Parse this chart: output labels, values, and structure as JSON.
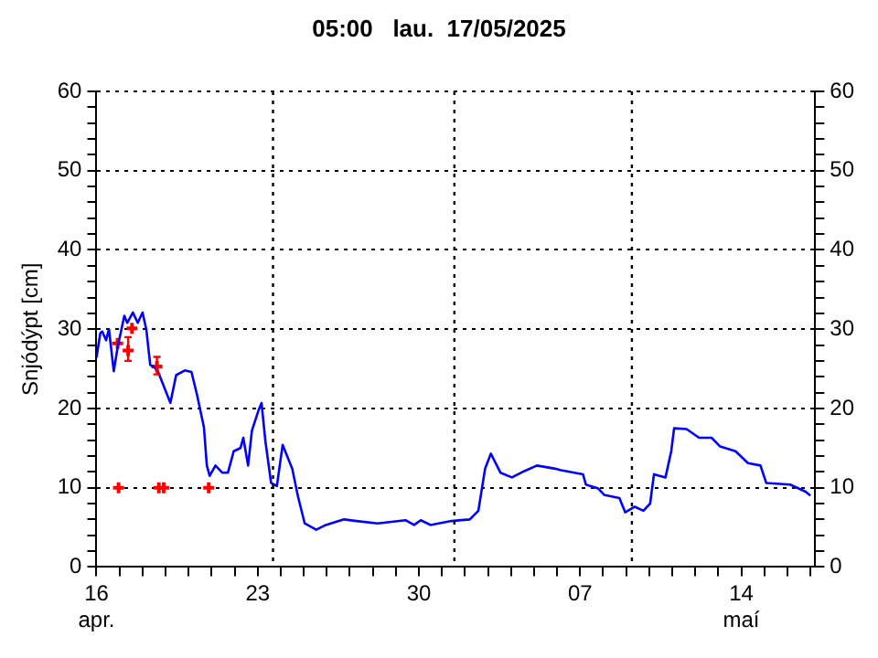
{
  "chart_data": {
    "type": "line",
    "title": "05:00   lau.  17/05/2025",
    "ylabel": "Snjódýpt [cm]",
    "xlim": [
      "2025-04-16T00:00",
      "2025-05-17T05:00"
    ],
    "xticks": [
      {
        "value": "2025-04-16",
        "label": "16\napr."
      },
      {
        "value": "2025-04-17",
        "label": null
      },
      {
        "value": "2025-04-18",
        "label": null
      },
      {
        "value": "2025-04-19",
        "label": null
      },
      {
        "value": "2025-04-20",
        "label": null
      },
      {
        "value": "2025-04-21",
        "label": null
      },
      {
        "value": "2025-04-22",
        "label": null
      },
      {
        "value": "2025-04-23",
        "label": "23"
      },
      {
        "value": "2025-04-24",
        "label": null
      },
      {
        "value": "2025-04-25",
        "label": null
      },
      {
        "value": "2025-04-26",
        "label": null
      },
      {
        "value": "2025-04-27",
        "label": null
      },
      {
        "value": "2025-04-28",
        "label": null
      },
      {
        "value": "2025-04-29",
        "label": null
      },
      {
        "value": "2025-04-30",
        "label": "30"
      },
      {
        "value": "2025-05-01",
        "label": null
      },
      {
        "value": "2025-05-02",
        "label": null
      },
      {
        "value": "2025-05-03",
        "label": null
      },
      {
        "value": "2025-05-04",
        "label": null
      },
      {
        "value": "2025-05-05",
        "label": null
      },
      {
        "value": "2025-05-06",
        "label": null
      },
      {
        "value": "2025-05-07",
        "label": "07"
      },
      {
        "value": "2025-05-08",
        "label": null
      },
      {
        "value": "2025-05-09",
        "label": null
      },
      {
        "value": "2025-05-10",
        "label": null
      },
      {
        "value": "2025-05-11",
        "label": null
      },
      {
        "value": "2025-05-12",
        "label": null
      },
      {
        "value": "2025-05-13",
        "label": null
      },
      {
        "value": "2025-05-14",
        "label": "14\nmaí"
      },
      {
        "value": "2025-05-15",
        "label": null
      },
      {
        "value": "2025-05-16",
        "label": null
      },
      {
        "value": "2025-05-17",
        "label": null
      }
    ],
    "ylim": [
      0,
      60
    ],
    "yticks": [
      0,
      {
        "value": 2,
        "label": null
      },
      {
        "value": 4,
        "label": null
      },
      {
        "value": 6,
        "label": null
      },
      {
        "value": 8,
        "label": null
      },
      10,
      {
        "value": 12,
        "label": null
      },
      {
        "value": 14,
        "label": null
      },
      {
        "value": 16,
        "label": null
      },
      {
        "value": 18,
        "label": null
      },
      20,
      {
        "value": 22,
        "label": null
      },
      {
        "value": 24,
        "label": null
      },
      {
        "value": 26,
        "label": null
      },
      {
        "value": 28,
        "label": null
      },
      30,
      {
        "value": 32,
        "label": null
      },
      {
        "value": 34,
        "label": null
      },
      {
        "value": 36,
        "label": null
      },
      {
        "value": 38,
        "label": null
      },
      40,
      {
        "value": 42,
        "label": null
      },
      {
        "value": 44,
        "label": null
      },
      {
        "value": 46,
        "label": null
      },
      {
        "value": 48,
        "label": null
      },
      50,
      {
        "value": 52,
        "label": null
      },
      {
        "value": 54,
        "label": null
      },
      {
        "value": 56,
        "label": null
      },
      {
        "value": 58,
        "label": null
      },
      60
    ],
    "y2lim": [
      0,
      60
    ],
    "y2ticks": [
      0,
      {
        "value": 2,
        "label": null
      },
      {
        "value": 4,
        "label": null
      },
      {
        "value": 6,
        "label": null
      },
      {
        "value": 8,
        "label": null
      },
      10,
      {
        "value": 12,
        "label": null
      },
      {
        "value": 14,
        "label": null
      },
      {
        "value": 16,
        "label": null
      },
      {
        "value": 18,
        "label": null
      },
      20,
      {
        "value": 22,
        "label": null
      },
      {
        "value": 24,
        "label": null
      },
      {
        "value": 26,
        "label": null
      },
      {
        "value": 28,
        "label": null
      },
      30,
      {
        "value": 32,
        "label": null
      },
      {
        "value": 34,
        "label": null
      },
      {
        "value": 36,
        "label": null
      },
      {
        "value": 38,
        "label": null
      },
      40,
      {
        "value": 42,
        "label": null
      },
      {
        "value": 44,
        "label": null
      },
      {
        "value": 46,
        "label": null
      },
      {
        "value": 48,
        "label": null
      },
      50,
      {
        "value": 52,
        "label": null
      },
      {
        "value": 54,
        "label": null
      },
      {
        "value": 56,
        "label": null
      },
      {
        "value": 58,
        "label": null
      },
      60
    ],
    "grid": "y",
    "legend": false,
    "line_style": "solid",
    "ref_lines": [
      {
        "axis": "x",
        "value": "2025-04-23T16:00",
        "line_style": "dotted",
        "color": "#000000"
      },
      {
        "axis": "x",
        "value": "2025-05-01T13:00",
        "line_style": "dotted",
        "color": "#000000"
      },
      {
        "axis": "x",
        "value": "2025-05-09T06:00",
        "line_style": "dotted",
        "color": "#000000"
      }
    ],
    "series": [
      {
        "color": "#0000ff",
        "x": [
          "2025-04-16T00:00",
          "2025-04-16T04:00",
          "2025-04-16T06:00",
          "2025-04-16T10:00",
          "2025-04-16T13:00",
          "2025-04-16T18:00",
          "2025-04-16T22:00",
          "2025-04-17T05:00",
          "2025-04-17T08:00",
          "2025-04-17T14:00",
          "2025-04-17T19:00",
          "2025-04-18T00:00",
          "2025-04-18T04:00",
          "2025-04-18T08:00",
          "2025-04-18T13:00",
          "2025-04-18T16:00",
          "2025-04-19T05:00",
          "2025-04-19T11:00",
          "2025-04-19T20:00",
          "2025-04-20T03:00",
          "2025-04-20T09:00",
          "2025-04-20T16:00",
          "2025-04-20T19:00",
          "2025-04-20T22:00",
          "2025-04-21T04:00",
          "2025-04-21T11:00",
          "2025-04-21T17:00",
          "2025-04-21T23:00",
          "2025-04-22T06:00",
          "2025-04-22T09:00",
          "2025-04-22T14:00",
          "2025-04-22T18:00",
          "2025-04-23T01:00",
          "2025-04-23T04:00",
          "2025-04-23T08:00",
          "2025-04-23T14:00",
          "2025-04-23T20:00",
          "2025-04-24T02:00",
          "2025-04-24T12:00",
          "2025-04-24T18:00",
          "2025-04-25T01:00",
          "2025-04-25T13:00",
          "2025-04-25T23:00",
          "2025-04-26T18:00",
          "2025-04-27T07:00",
          "2025-04-28T05:00",
          "2025-04-29T10:00",
          "2025-04-29T19:00",
          "2025-04-30T02:00",
          "2025-04-30T12:00",
          "2025-05-01T10:00",
          "2025-05-02T05:00",
          "2025-05-02T14:00",
          "2025-05-02T21:00",
          "2025-05-03T03:00",
          "2025-05-03T13:00",
          "2025-05-04T01:00",
          "2025-05-04T14:00",
          "2025-05-05T03:00",
          "2025-05-05T22:00",
          "2025-05-06T04:00",
          "2025-05-07T03:00",
          "2025-05-07T06:00",
          "2025-05-07T19:00",
          "2025-05-08T01:00",
          "2025-05-08T17:00",
          "2025-05-08T23:00",
          "2025-05-09T09:00",
          "2025-05-09T18:00",
          "2025-05-10T01:00",
          "2025-05-10T05:00",
          "2025-05-10T17:00",
          "2025-05-10T23:00",
          "2025-05-11T02:00",
          "2025-05-11T15:00",
          "2025-05-12T04:00",
          "2025-05-12T17:00",
          "2025-05-13T02:00",
          "2025-05-13T18:00",
          "2025-05-14T07:00",
          "2025-05-14T20:00",
          "2025-05-15T02:00",
          "2025-05-16T03:00",
          "2025-05-16T19:00",
          "2025-05-17T00:00"
        ],
        "values": [
          26.4,
          29.5,
          29.7,
          28.6,
          30.0,
          24.7,
          27.7,
          31.7,
          30.8,
          32.1,
          30.8,
          32.1,
          29.9,
          25.5,
          25.1,
          24.7,
          20.7,
          24.2,
          24.8,
          24.6,
          21.6,
          17.6,
          12.8,
          11.5,
          12.8,
          11.9,
          11.9,
          14.6,
          15.0,
          16.3,
          12.8,
          17.2,
          19.8,
          20.7,
          15.9,
          10.6,
          10.2,
          15.4,
          12.4,
          8.9,
          5.5,
          4.7,
          5.3,
          6.0,
          5.8,
          5.5,
          5.9,
          5.3,
          5.9,
          5.3,
          5.8,
          6.0,
          7.1,
          12.4,
          14.3,
          11.9,
          11.3,
          12.1,
          12.8,
          12.4,
          12.2,
          11.7,
          10.4,
          9.9,
          9.1,
          8.7,
          6.9,
          7.6,
          7.1,
          8.0,
          11.7,
          11.3,
          14.6,
          17.5,
          17.4,
          16.3,
          16.3,
          15.2,
          14.6,
          13.1,
          12.8,
          10.6,
          10.4,
          9.5,
          9.0
        ]
      },
      {
        "type": "scatter",
        "color": "#ff0000",
        "marker": "cross",
        "x": [
          "2025-04-16T22:00",
          "2025-04-17T09:00",
          "2025-04-17T13:00",
          "2025-04-18T15:00",
          "2025-04-16T23:00",
          "2025-04-18T17:00",
          "2025-04-18T22:00",
          "2025-04-20T21:00"
        ],
        "values": [
          28.2,
          27.3,
          30.1,
          25.3,
          10,
          10,
          10,
          10
        ],
        "errors": [
          null,
          [
            26.0,
            29.0
          ],
          null,
          [
            24.3,
            26.5
          ],
          null,
          null,
          null,
          null
        ]
      }
    ]
  }
}
